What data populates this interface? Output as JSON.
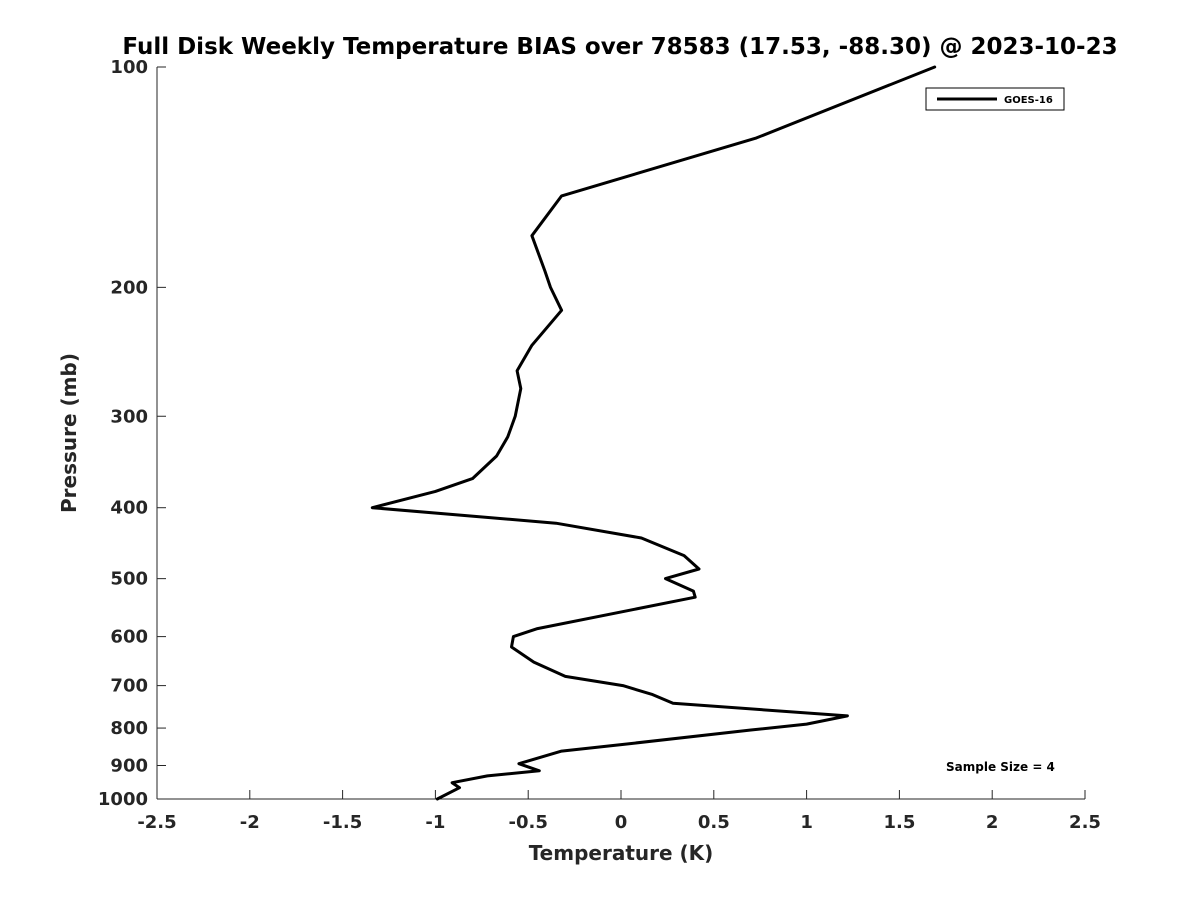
{
  "chart_data": {
    "type": "line",
    "title": "Full Disk Weekly Temperature BIAS over 78583 (17.53, -88.30) @ 2023-10-23",
    "xlabel": "Temperature (K)",
    "ylabel": "Pressure (mb)",
    "xlim": [
      -2.5,
      2.5
    ],
    "ylim": [
      100,
      1000
    ],
    "y_scale": "log",
    "y_reversed": true,
    "grid": false,
    "legend_position": "top-right",
    "x_ticks": [
      "-2.5",
      "-2",
      "-1.5",
      "-1",
      "-0.5",
      "0",
      "0.5",
      "1",
      "1.5",
      "2",
      "2.5"
    ],
    "y_ticks": [
      "100",
      "200",
      "300",
      "400",
      "500",
      "600",
      "700",
      "800",
      "900",
      "1000"
    ],
    "annotation": "Sample Size = 4",
    "series": [
      {
        "name": "GOES-16",
        "color": "#000000",
        "points": [
          [
            1.69,
            100
          ],
          [
            0.73,
            125
          ],
          [
            -0.32,
            150
          ],
          [
            -0.48,
            170
          ],
          [
            -0.41,
            190
          ],
          [
            -0.38,
            200
          ],
          [
            -0.32,
            215
          ],
          [
            -0.48,
            240
          ],
          [
            -0.56,
            260
          ],
          [
            -0.54,
            275
          ],
          [
            -0.57,
            300
          ],
          [
            -0.61,
            320
          ],
          [
            -0.67,
            340
          ],
          [
            -0.8,
            365
          ],
          [
            -1.0,
            380
          ],
          [
            -1.34,
            400
          ],
          [
            -0.35,
            420
          ],
          [
            0.11,
            440
          ],
          [
            0.34,
            465
          ],
          [
            0.42,
            485
          ],
          [
            0.24,
            500
          ],
          [
            0.39,
            520
          ],
          [
            0.4,
            530
          ],
          [
            -0.45,
            585
          ],
          [
            -0.58,
            600
          ],
          [
            -0.59,
            620
          ],
          [
            -0.47,
            650
          ],
          [
            -0.3,
            680
          ],
          [
            0.01,
            700
          ],
          [
            0.17,
            720
          ],
          [
            0.28,
            740
          ],
          [
            1.22,
            770
          ],
          [
            1.0,
            790
          ],
          [
            0.7,
            805
          ],
          [
            0.05,
            840
          ],
          [
            -0.32,
            860
          ],
          [
            -0.55,
            895
          ],
          [
            -0.44,
            915
          ],
          [
            -0.72,
            930
          ],
          [
            -0.91,
            950
          ],
          [
            -0.87,
            965
          ],
          [
            -0.99,
            1000
          ]
        ]
      }
    ]
  }
}
